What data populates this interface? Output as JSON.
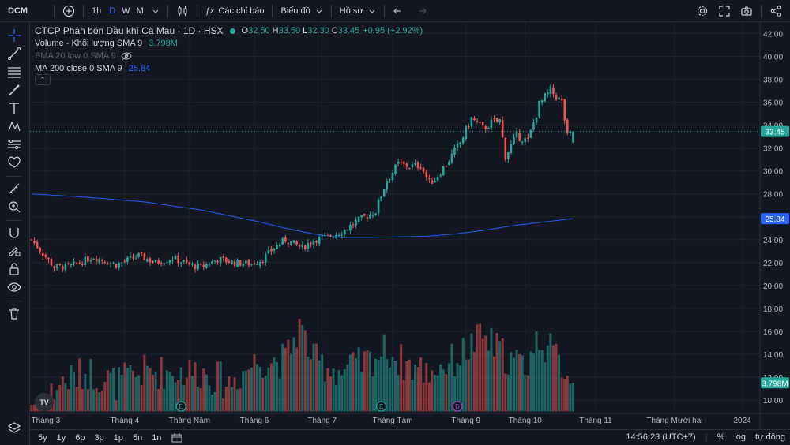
{
  "toolbar": {
    "symbol": "DCM",
    "intervals": [
      "1h",
      "D",
      "W",
      "M"
    ],
    "active_interval": "D",
    "indicators_label": "Các chỉ báo",
    "chart_label": "Biểu đồ",
    "profile_label": "Hồ sơ"
  },
  "legend": {
    "title": "CTCP Phân bón Dầu khí Cà Mau · 1D · HSX",
    "o_label": "O",
    "o": "32.50",
    "h_label": "H",
    "h": "33.50",
    "l_label": "L",
    "l": "32.30",
    "c_label": "C",
    "c": "33.45",
    "change": "+0.95 (+2.92%)",
    "volume_label": "Volume - Khối lượng SMA 9",
    "volume_value": "3.798M",
    "ema_label": "EMA 20 low 0 SMA 9",
    "ma_label": "MA 200 close 0 SMA 9",
    "ma_value": "25.84"
  },
  "chart_data": {
    "type": "candlestick",
    "y_ticks": [
      "42.00",
      "40.00",
      "38.00",
      "36.00",
      "34.00",
      "32.00",
      "30.00",
      "28.00",
      "26.00",
      "24.00",
      "22.00",
      "20.00",
      "18.00",
      "16.00",
      "14.00",
      "12.00",
      "10.00"
    ],
    "y_range": [
      8.9,
      43.0
    ],
    "x_ticks": [
      "Tháng 3",
      "Tháng 4",
      "Tháng Năm",
      "Tháng 6",
      "Tháng 7",
      "Tháng Tám",
      "Tháng 9",
      "Tháng 10",
      "Tháng 11",
      "Tháng Mười hai",
      "2024"
    ],
    "price_label": "33.45",
    "ma_label": "25.84",
    "volume_label": "3.798M",
    "event_markers": [
      {
        "label": "E",
        "color": "#26a69a"
      },
      {
        "label": "E",
        "color": "#26a69a"
      },
      {
        "label": "D",
        "color": "#ab47bc"
      }
    ],
    "close_anchors": [
      [
        0,
        24.0
      ],
      [
        8,
        21.6
      ],
      [
        14,
        21.7
      ],
      [
        22,
        22.5
      ],
      [
        30,
        21.8
      ],
      [
        38,
        22.6
      ],
      [
        44,
        22.0
      ],
      [
        50,
        22.4
      ],
      [
        56,
        21.8
      ],
      [
        60,
        21.6
      ],
      [
        66,
        22.3
      ],
      [
        72,
        22.0
      ],
      [
        78,
        21.9
      ],
      [
        82,
        22.3
      ],
      [
        86,
        23.3
      ],
      [
        90,
        24.0
      ],
      [
        96,
        23.3
      ],
      [
        100,
        24.0
      ],
      [
        104,
        24.2
      ],
      [
        110,
        24.7
      ],
      [
        116,
        25.7
      ],
      [
        122,
        26.5
      ],
      [
        124,
        27.9
      ],
      [
        126,
        29.2
      ],
      [
        130,
        30.6
      ],
      [
        134,
        30.4
      ],
      [
        138,
        30.5
      ],
      [
        141,
        29.0
      ],
      [
        143,
        29.3
      ],
      [
        147,
        30.6
      ],
      [
        152,
        32.5
      ],
      [
        156,
        34.6
      ],
      [
        160,
        33.7
      ],
      [
        163,
        34.2
      ],
      [
        166,
        34.4
      ],
      [
        168,
        31.3
      ],
      [
        172,
        33.1
      ],
      [
        176,
        32.6
      ],
      [
        180,
        35.8
      ],
      [
        184,
        37.0
      ],
      [
        188,
        36.0
      ],
      [
        190,
        33.0
      ],
      [
        192,
        33.45
      ]
    ],
    "ma200_anchors": [
      [
        0,
        28.0
      ],
      [
        20,
        27.7
      ],
      [
        40,
        27.3
      ],
      [
        60,
        26.6
      ],
      [
        80,
        25.6
      ],
      [
        90,
        25.0
      ],
      [
        100,
        24.5
      ],
      [
        110,
        24.2
      ],
      [
        120,
        24.2
      ],
      [
        130,
        24.25
      ],
      [
        140,
        24.3
      ],
      [
        150,
        24.5
      ],
      [
        160,
        24.8
      ],
      [
        170,
        25.2
      ],
      [
        180,
        25.5
      ],
      [
        192,
        25.84
      ]
    ],
    "volume_anchors": [
      [
        0,
        8
      ],
      [
        10,
        11
      ],
      [
        20,
        12
      ],
      [
        30,
        11
      ],
      [
        40,
        12
      ],
      [
        50,
        12
      ],
      [
        60,
        12
      ],
      [
        70,
        11
      ],
      [
        80,
        13
      ],
      [
        90,
        13
      ],
      [
        95,
        16
      ],
      [
        100,
        13
      ],
      [
        110,
        12
      ],
      [
        120,
        13
      ],
      [
        126,
        14
      ],
      [
        130,
        13
      ],
      [
        140,
        12
      ],
      [
        150,
        13
      ],
      [
        157,
        14.5
      ],
      [
        160,
        15
      ],
      [
        165,
        14
      ],
      [
        170,
        13
      ],
      [
        175,
        12.5
      ],
      [
        180,
        15
      ],
      [
        185,
        13.5
      ],
      [
        192,
        11.5
      ]
    ],
    "ma_color": "#2962ff",
    "up_color": "#26a69a",
    "down_color": "#ef5350"
  },
  "bottom": {
    "ranges": [
      "5y",
      "1y",
      "6p",
      "3p",
      "1p",
      "5n",
      "1n"
    ],
    "time": "14:56:23 (UTC+7)",
    "percent": "%",
    "log": "log",
    "auto": "tự động"
  }
}
